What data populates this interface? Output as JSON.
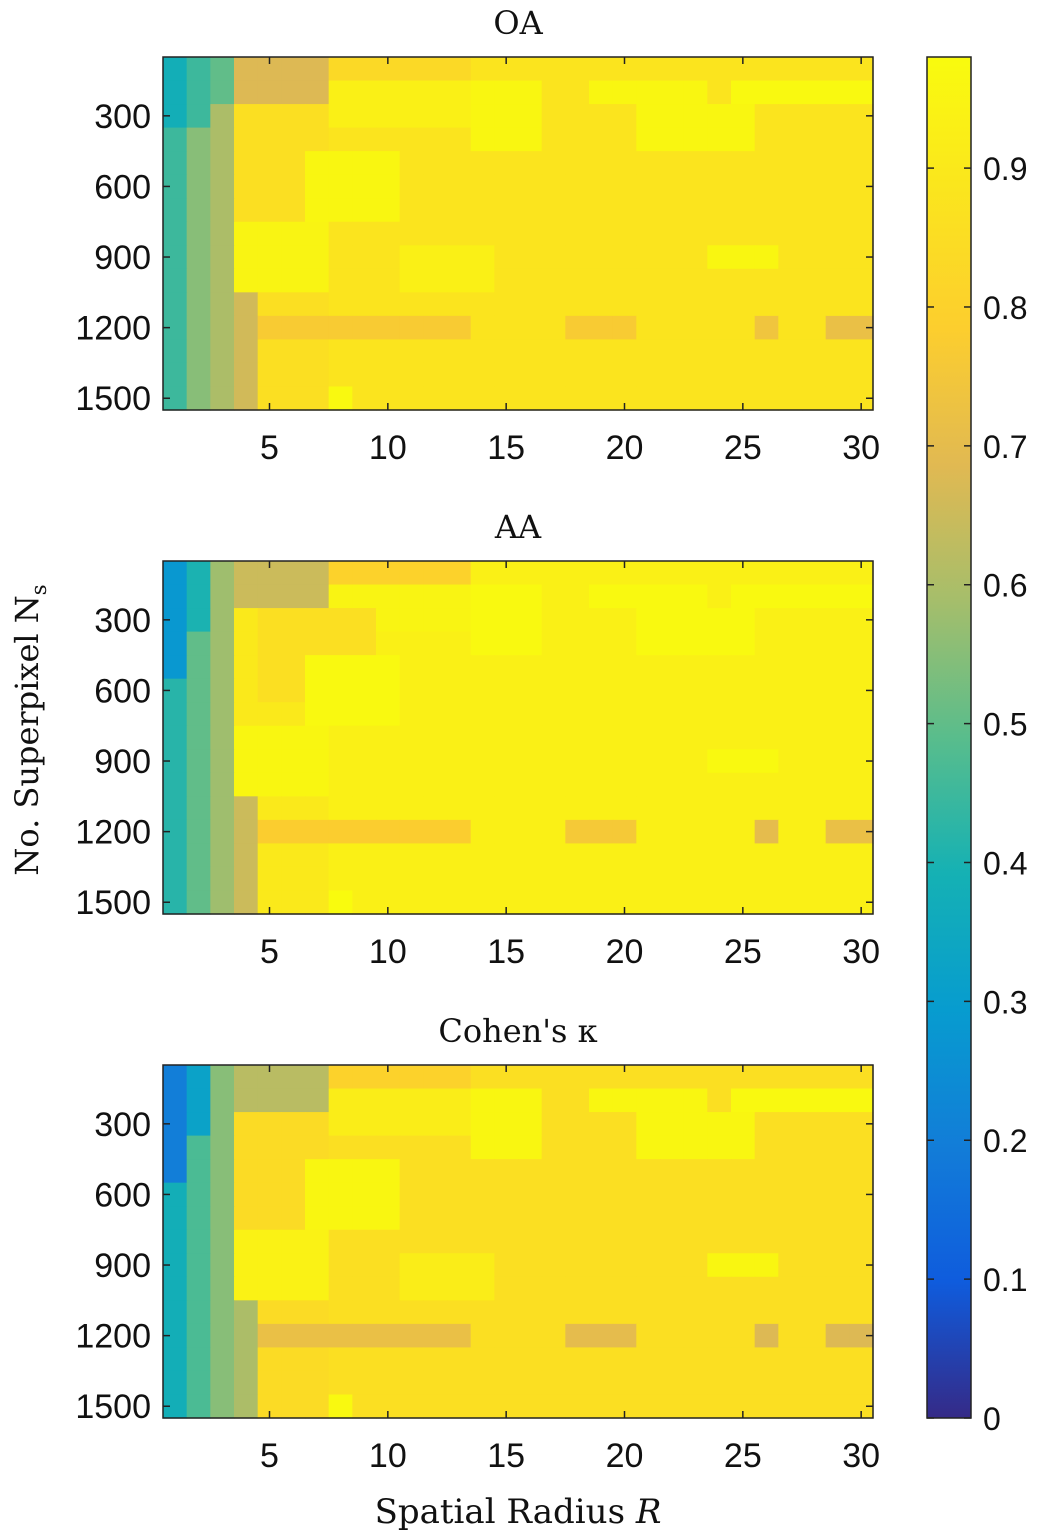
{
  "figure": {
    "ylabel": "No. Superpixel N",
    "ylabel_subscript": "s",
    "xlabel": "Spatial Radius ",
    "xlabel_var": "R"
  },
  "colorbar": {
    "colormap": "parula",
    "limits": [
      0,
      0.98
    ],
    "ticks": [
      0,
      0.1,
      0.2,
      0.3,
      0.4,
      0.5,
      0.6,
      0.7,
      0.8,
      0.9
    ],
    "tick_labels": [
      "0",
      "0.1",
      "0.2",
      "0.3",
      "0.4",
      "0.5",
      "0.6",
      "0.7",
      "0.8",
      "0.9"
    ]
  },
  "chart_data": [
    {
      "type": "heatmap",
      "title": "OA",
      "x_ticks": [
        5,
        10,
        15,
        20,
        25,
        30
      ],
      "y_ticks": [
        300,
        600,
        900,
        1200,
        1500
      ],
      "x_range": [
        1,
        30
      ],
      "y_range": [
        100,
        1500
      ],
      "rows": 15,
      "cols": 30,
      "x_tick_labels": [
        "5",
        "10",
        "15",
        "20",
        "25",
        "30"
      ],
      "y_tick_labels": [
        "300",
        "600",
        "900",
        "1200",
        "1500"
      ],
      "regions": [
        {
          "cols": [
            1,
            30
          ],
          "rows": [
            1,
            15
          ],
          "value": 0.88
        },
        {
          "cols": [
            3,
            7
          ],
          "rows": [
            1,
            15
          ],
          "value": 0.86
        },
        {
          "cols": [
            3,
            7
          ],
          "rows": [
            1,
            2
          ],
          "value": 0.68
        },
        {
          "cols": [
            8,
            13
          ],
          "rows": [
            1,
            1
          ],
          "value": 0.83
        },
        {
          "cols": [
            8,
            13
          ],
          "rows": [
            2,
            3
          ],
          "value": 0.93
        },
        {
          "cols": [
            14,
            16
          ],
          "rows": [
            2,
            4
          ],
          "value": 0.96
        },
        {
          "cols": [
            19,
            23
          ],
          "rows": [
            2,
            2
          ],
          "value": 0.96
        },
        {
          "cols": [
            25,
            30
          ],
          "rows": [
            2,
            2
          ],
          "value": 0.97
        },
        {
          "cols": [
            21,
            25
          ],
          "rows": [
            3,
            4
          ],
          "value": 0.96
        },
        {
          "cols": [
            7,
            10
          ],
          "rows": [
            5,
            7
          ],
          "value": 0.96
        },
        {
          "cols": [
            4,
            7
          ],
          "rows": [
            8,
            10
          ],
          "value": 0.95
        },
        {
          "cols": [
            11,
            14
          ],
          "rows": [
            9,
            10
          ],
          "value": 0.93
        },
        {
          "cols": [
            24,
            26
          ],
          "rows": [
            9,
            9
          ],
          "value": 0.96
        },
        {
          "cols": [
            5,
            13
          ],
          "rows": [
            12,
            12
          ],
          "value": 0.77
        },
        {
          "cols": [
            18,
            20
          ],
          "rows": [
            12,
            12
          ],
          "value": 0.77
        },
        {
          "cols": [
            26,
            26
          ],
          "rows": [
            12,
            12
          ],
          "value": 0.74
        },
        {
          "cols": [
            29,
            30
          ],
          "rows": [
            12,
            12
          ],
          "value": 0.72
        },
        {
          "cols": [
            3,
            4
          ],
          "rows": [
            11,
            15
          ],
          "value": 0.66
        },
        {
          "cols": [
            8,
            8
          ],
          "rows": [
            15,
            15
          ],
          "value": 0.97
        },
        {
          "cols": [
            1,
            1
          ],
          "rows": [
            1,
            15
          ],
          "value": 0.45
        },
        {
          "cols": [
            1,
            1
          ],
          "rows": [
            1,
            3
          ],
          "value": 0.38
        },
        {
          "cols": [
            2,
            2
          ],
          "rows": [
            1,
            15
          ],
          "value": 0.55
        },
        {
          "cols": [
            2,
            2
          ],
          "rows": [
            1,
            3
          ],
          "value": 0.45
        },
        {
          "cols": [
            3,
            3
          ],
          "rows": [
            1,
            15
          ],
          "value": 0.6
        },
        {
          "cols": [
            3,
            3
          ],
          "rows": [
            1,
            2
          ],
          "value": 0.5
        }
      ]
    },
    {
      "type": "heatmap",
      "title": "AA",
      "x_ticks": [
        5,
        10,
        15,
        20,
        25,
        30
      ],
      "y_ticks": [
        300,
        600,
        900,
        1200,
        1500
      ],
      "x_range": [
        1,
        30
      ],
      "y_range": [
        100,
        1500
      ],
      "rows": 15,
      "cols": 30,
      "x_tick_labels": [
        "5",
        "10",
        "15",
        "20",
        "25",
        "30"
      ],
      "y_tick_labels": [
        "300",
        "600",
        "900",
        "1200",
        "1500"
      ],
      "regions": [
        {
          "cols": [
            1,
            30
          ],
          "rows": [
            1,
            15
          ],
          "value": 0.93
        },
        {
          "cols": [
            3,
            7
          ],
          "rows": [
            1,
            15
          ],
          "value": 0.9
        },
        {
          "cols": [
            3,
            7
          ],
          "rows": [
            1,
            2
          ],
          "value": 0.65
        },
        {
          "cols": [
            8,
            13
          ],
          "rows": [
            1,
            1
          ],
          "value": 0.8
        },
        {
          "cols": [
            8,
            13
          ],
          "rows": [
            2,
            3
          ],
          "value": 0.95
        },
        {
          "cols": [
            5,
            9
          ],
          "rows": [
            3,
            6
          ],
          "value": 0.86
        },
        {
          "cols": [
            14,
            16
          ],
          "rows": [
            2,
            4
          ],
          "value": 0.97
        },
        {
          "cols": [
            19,
            23
          ],
          "rows": [
            2,
            2
          ],
          "value": 0.97
        },
        {
          "cols": [
            25,
            30
          ],
          "rows": [
            2,
            2
          ],
          "value": 0.97
        },
        {
          "cols": [
            21,
            25
          ],
          "rows": [
            3,
            4
          ],
          "value": 0.97
        },
        {
          "cols": [
            7,
            10
          ],
          "rows": [
            5,
            7
          ],
          "value": 0.97
        },
        {
          "cols": [
            4,
            7
          ],
          "rows": [
            8,
            10
          ],
          "value": 0.96
        },
        {
          "cols": [
            24,
            26
          ],
          "rows": [
            9,
            9
          ],
          "value": 0.97
        },
        {
          "cols": [
            5,
            13
          ],
          "rows": [
            12,
            12
          ],
          "value": 0.78
        },
        {
          "cols": [
            18,
            20
          ],
          "rows": [
            12,
            12
          ],
          "value": 0.76
        },
        {
          "cols": [
            26,
            26
          ],
          "rows": [
            12,
            12
          ],
          "value": 0.7
        },
        {
          "cols": [
            29,
            30
          ],
          "rows": [
            12,
            12
          ],
          "value": 0.72
        },
        {
          "cols": [
            3,
            4
          ],
          "rows": [
            11,
            15
          ],
          "value": 0.65
        },
        {
          "cols": [
            8,
            8
          ],
          "rows": [
            15,
            15
          ],
          "value": 0.98
        },
        {
          "cols": [
            1,
            1
          ],
          "rows": [
            1,
            15
          ],
          "value": 0.42
        },
        {
          "cols": [
            1,
            1
          ],
          "rows": [
            1,
            5
          ],
          "value": 0.28
        },
        {
          "cols": [
            2,
            2
          ],
          "rows": [
            1,
            15
          ],
          "value": 0.5
        },
        {
          "cols": [
            2,
            2
          ],
          "rows": [
            1,
            3
          ],
          "value": 0.4
        },
        {
          "cols": [
            3,
            3
          ],
          "rows": [
            1,
            15
          ],
          "value": 0.58
        }
      ]
    },
    {
      "type": "heatmap",
      "title": "Cohen's κ",
      "x_ticks": [
        5,
        10,
        15,
        20,
        25,
        30
      ],
      "y_ticks": [
        300,
        600,
        900,
        1200,
        1500
      ],
      "x_range": [
        1,
        30
      ],
      "y_range": [
        100,
        1500
      ],
      "rows": 15,
      "cols": 30,
      "x_tick_labels": [
        "5",
        "10",
        "15",
        "20",
        "25",
        "30"
      ],
      "y_tick_labels": [
        "300",
        "600",
        "900",
        "1200",
        "1500"
      ],
      "regions": [
        {
          "cols": [
            1,
            30
          ],
          "rows": [
            1,
            15
          ],
          "value": 0.86
        },
        {
          "cols": [
            3,
            7
          ],
          "rows": [
            1,
            15
          ],
          "value": 0.84
        },
        {
          "cols": [
            3,
            7
          ],
          "rows": [
            1,
            2
          ],
          "value": 0.62
        },
        {
          "cols": [
            8,
            13
          ],
          "rows": [
            1,
            1
          ],
          "value": 0.8
        },
        {
          "cols": [
            8,
            13
          ],
          "rows": [
            2,
            3
          ],
          "value": 0.92
        },
        {
          "cols": [
            14,
            16
          ],
          "rows": [
            2,
            4
          ],
          "value": 0.96
        },
        {
          "cols": [
            19,
            23
          ],
          "rows": [
            2,
            2
          ],
          "value": 0.96
        },
        {
          "cols": [
            25,
            30
          ],
          "rows": [
            2,
            2
          ],
          "value": 0.97
        },
        {
          "cols": [
            21,
            25
          ],
          "rows": [
            3,
            4
          ],
          "value": 0.96
        },
        {
          "cols": [
            7,
            10
          ],
          "rows": [
            5,
            7
          ],
          "value": 0.96
        },
        {
          "cols": [
            4,
            7
          ],
          "rows": [
            8,
            10
          ],
          "value": 0.94
        },
        {
          "cols": [
            11,
            14
          ],
          "rows": [
            9,
            10
          ],
          "value": 0.92
        },
        {
          "cols": [
            24,
            26
          ],
          "rows": [
            9,
            9
          ],
          "value": 0.96
        },
        {
          "cols": [
            5,
            13
          ],
          "rows": [
            12,
            12
          ],
          "value": 0.72
        },
        {
          "cols": [
            18,
            20
          ],
          "rows": [
            12,
            12
          ],
          "value": 0.7
        },
        {
          "cols": [
            26,
            26
          ],
          "rows": [
            12,
            12
          ],
          "value": 0.68
        },
        {
          "cols": [
            29,
            30
          ],
          "rows": [
            12,
            12
          ],
          "value": 0.68
        },
        {
          "cols": [
            3,
            4
          ],
          "rows": [
            11,
            15
          ],
          "value": 0.6
        },
        {
          "cols": [
            8,
            8
          ],
          "rows": [
            15,
            15
          ],
          "value": 0.97
        },
        {
          "cols": [
            1,
            1
          ],
          "rows": [
            1,
            15
          ],
          "value": 0.38
        },
        {
          "cols": [
            1,
            1
          ],
          "rows": [
            1,
            5
          ],
          "value": 0.2
        },
        {
          "cols": [
            2,
            2
          ],
          "rows": [
            1,
            15
          ],
          "value": 0.47
        },
        {
          "cols": [
            2,
            2
          ],
          "rows": [
            1,
            3
          ],
          "value": 0.32
        },
        {
          "cols": [
            3,
            3
          ],
          "rows": [
            1,
            15
          ],
          "value": 0.55
        }
      ]
    }
  ]
}
